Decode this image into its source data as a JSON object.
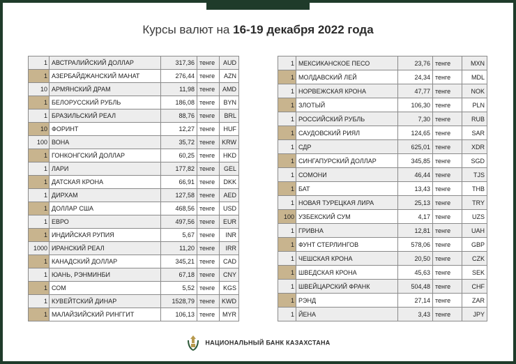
{
  "header": {
    "title": "Курсы валют на",
    "date": "16-19 декабря 2022 года"
  },
  "tables": [
    {
      "rows": [
        [
          1,
          "АВСТРАЛИЙСКИЙ ДОЛЛАР",
          "317,36",
          "тенге",
          "AUD"
        ],
        [
          1,
          "АЗЕРБАЙДЖАНСКИЙ МАНАТ",
          "276,44",
          "тенге",
          "AZN"
        ],
        [
          10,
          "АРМЯНСКИЙ ДРАМ",
          "11,98",
          "тенге",
          "AMD"
        ],
        [
          1,
          "БЕЛОРУССКИЙ РУБЛЬ",
          "186,08",
          "тенге",
          "BYN"
        ],
        [
          1,
          "БРАЗИЛЬСКИЙ РЕАЛ",
          "88,76",
          "тенге",
          "BRL"
        ],
        [
          10,
          "ФОРИНТ",
          "12,27",
          "тенге",
          "HUF"
        ],
        [
          100,
          "ВОНА",
          "35,72",
          "тенге",
          "KRW"
        ],
        [
          1,
          "ГОНКОНГСКИЙ ДОЛЛАР",
          "60,25",
          "тенге",
          "HKD"
        ],
        [
          1,
          "ЛАРИ",
          "177,82",
          "тенге",
          "GEL"
        ],
        [
          1,
          "ДАТСКАЯ КРОНА",
          "66,91",
          "тенге",
          "DKK"
        ],
        [
          1,
          "ДИРХАМ",
          "127,58",
          "тенге",
          "AED"
        ],
        [
          1,
          "ДОЛЛАР США",
          "468,56",
          "тенге",
          "USD"
        ],
        [
          1,
          "ЕВРО",
          "497,56",
          "тенге",
          "EUR"
        ],
        [
          1,
          "ИНДИЙСКАЯ РУПИЯ",
          "5,67",
          "тенге",
          "INR"
        ],
        [
          1000,
          "ИРАНСКИЙ РЕАЛ",
          "11,20",
          "тенге",
          "IRR"
        ],
        [
          1,
          "КАНАДСКИЙ ДОЛЛАР",
          "345,21",
          "тенге",
          "CAD"
        ],
        [
          1,
          "ЮАНЬ, РЭНМИНБИ",
          "67,18",
          "тенге",
          "CNY"
        ],
        [
          1,
          "СОМ",
          "5,52",
          "тенге",
          "KGS"
        ],
        [
          1,
          "КУВЕЙТСКИЙ ДИНАР",
          "1528,79",
          "тенге",
          "KWD"
        ],
        [
          1,
          "МАЛАЙЗИЙСКИЙ РИНГГИТ",
          "106,13",
          "тенге",
          "MYR"
        ]
      ]
    },
    {
      "rows": [
        [
          1,
          "МЕКСИКАНСКОЕ ПЕСО",
          "23,76",
          "тенге",
          "MXN"
        ],
        [
          1,
          "МОЛДАВСКИЙ ЛЕЙ",
          "24,34",
          "тенге",
          "MDL"
        ],
        [
          1,
          "НОРВЕЖСКАЯ КРОНА",
          "47,77",
          "тенге",
          "NOK"
        ],
        [
          1,
          "ЗЛОТЫЙ",
          "106,30",
          "тенге",
          "PLN"
        ],
        [
          1,
          "РОССИЙСКИЙ РУБЛЬ",
          "7,30",
          "тенге",
          "RUB"
        ],
        [
          1,
          "САУДОВСКИЙ РИЯЛ",
          "124,65",
          "тенге",
          "SAR"
        ],
        [
          1,
          "СДР",
          "625,01",
          "тенге",
          "XDR"
        ],
        [
          1,
          "СИНГАПУРСКИЙ ДОЛЛАР",
          "345,85",
          "тенге",
          "SGD"
        ],
        [
          1,
          "СОМОНИ",
          "46,44",
          "тенге",
          "TJS"
        ],
        [
          1,
          "БАТ",
          "13,43",
          "тенге",
          "THB"
        ],
        [
          1,
          "НОВАЯ ТУРЕЦКАЯ ЛИРА",
          "25,13",
          "тенге",
          "TRY"
        ],
        [
          100,
          "УЗБЕКСКИЙ СУМ",
          "4,17",
          "тенге",
          "UZS"
        ],
        [
          1,
          "ГРИВНА",
          "12,81",
          "тенге",
          "UAH"
        ],
        [
          1,
          "ФУНТ СТЕРЛИНГОВ",
          "578,06",
          "тенге",
          "GBP"
        ],
        [
          1,
          "ЧЕШСКАЯ КРОНА",
          "20,50",
          "тенге",
          "CZK"
        ],
        [
          1,
          "ШВЕДСКАЯ КРОНА",
          "45,63",
          "тенге",
          "SEK"
        ],
        [
          1,
          "ШВЕЙЦАРСКИЙ ФРАНК",
          "504,48",
          "тенге",
          "CHF"
        ],
        [
          1,
          "РЭНД",
          "27,14",
          "тенге",
          "ZAR"
        ],
        [
          1,
          "ЙЕНА",
          "3,43",
          "тенге",
          "JPY"
        ]
      ]
    }
  ],
  "footer": {
    "bank": "НАЦИОНАЛЬНЫЙ БАНК КАЗАХСТАНА"
  }
}
